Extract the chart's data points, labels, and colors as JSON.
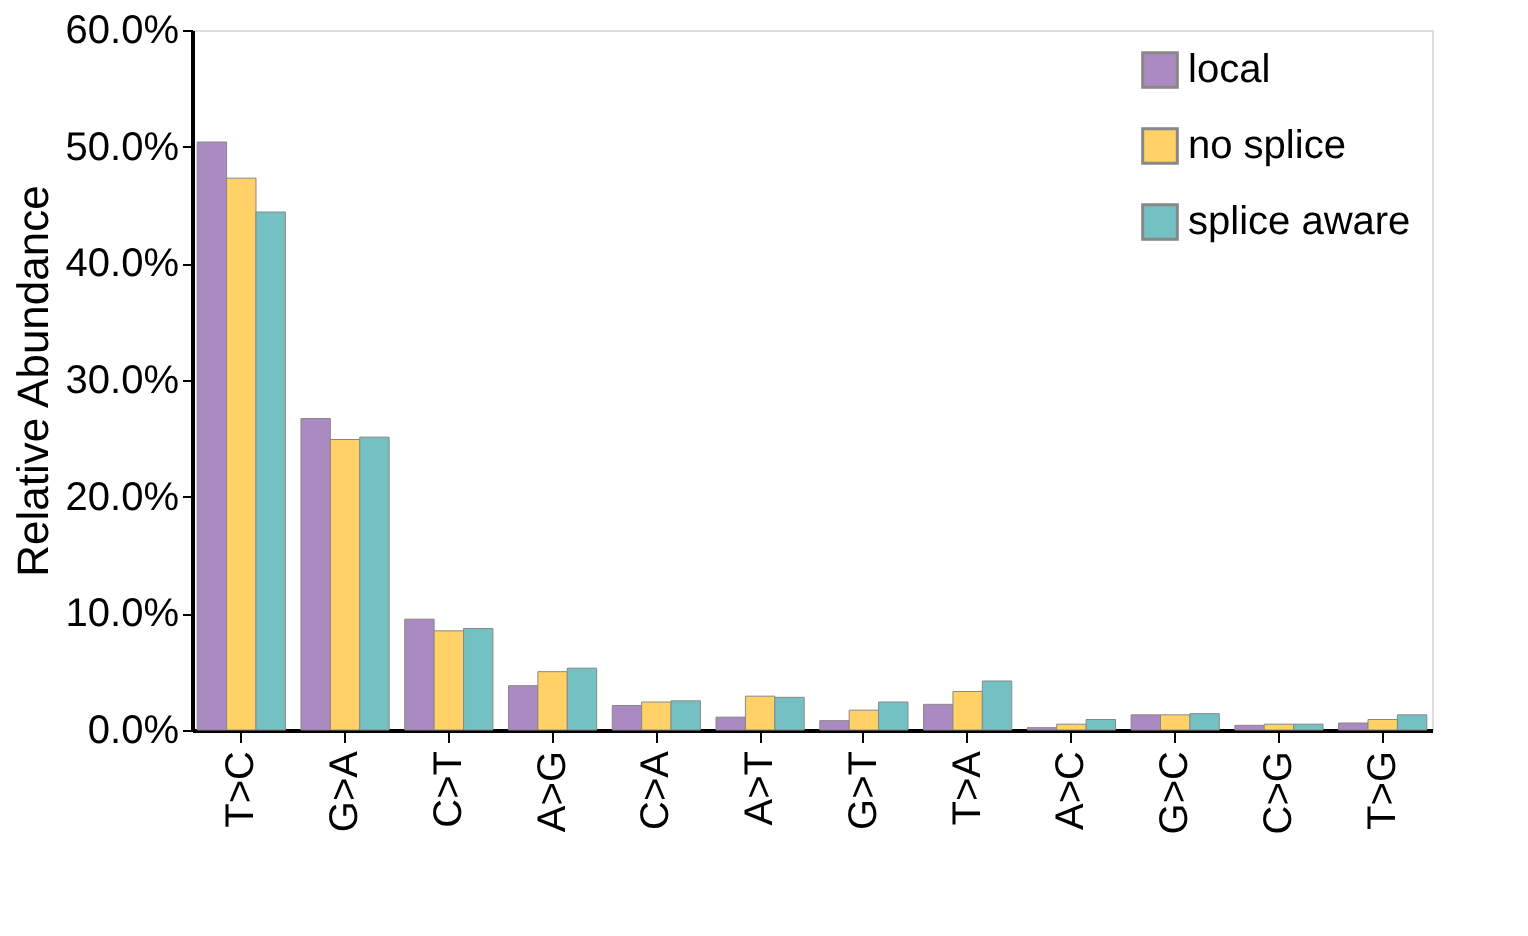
{
  "chart_data": {
    "type": "bar",
    "ylabel": "Relative Abundance",
    "categories": [
      "T>C",
      "G>A",
      "C>T",
      "A>G",
      "C>A",
      "A>T",
      "G>T",
      "T>A",
      "A>C",
      "G>C",
      "C>G",
      "T>G"
    ],
    "series": [
      {
        "name": "local",
        "color": "#ab8ac2",
        "values": [
          50.4,
          26.7,
          9.5,
          3.8,
          2.1,
          1.1,
          0.8,
          2.2,
          0.2,
          1.3,
          0.4,
          0.6
        ]
      },
      {
        "name": "no splice",
        "color": "#ffd166",
        "values": [
          47.3,
          24.9,
          8.5,
          5.0,
          2.4,
          2.9,
          1.7,
          3.3,
          0.5,
          1.3,
          0.5,
          0.9
        ]
      },
      {
        "name": "splice aware",
        "color": "#74c1c3",
        "values": [
          44.4,
          25.1,
          8.7,
          5.3,
          2.5,
          2.8,
          2.4,
          4.2,
          0.9,
          1.4,
          0.5,
          1.3
        ]
      }
    ],
    "ylim": [
      0,
      60
    ],
    "yticks": [
      {
        "value": 0,
        "label": "0.0%"
      },
      {
        "value": 10,
        "label": "10.0%"
      },
      {
        "value": 20,
        "label": "20.0%"
      },
      {
        "value": 30,
        "label": "30.0%"
      },
      {
        "value": 40,
        "label": "40.0%"
      },
      {
        "value": 50,
        "label": "50.0%"
      },
      {
        "value": 60,
        "label": "60.0%"
      }
    ],
    "grid": false,
    "legend": "top right"
  }
}
